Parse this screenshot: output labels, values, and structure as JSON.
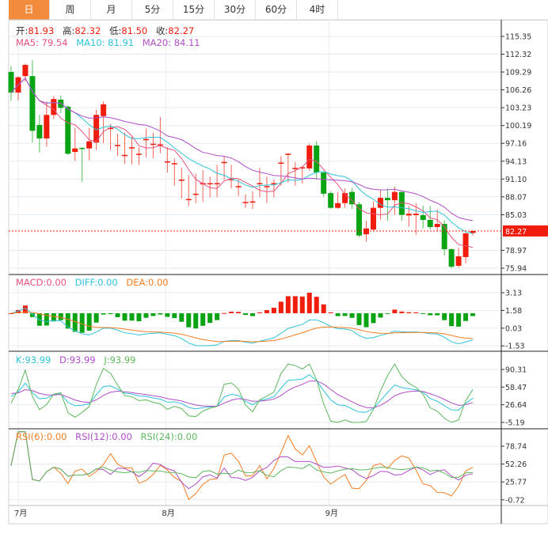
{
  "tabs": [
    "日",
    "周",
    "月",
    "5分",
    "15分",
    "30分",
    "60分",
    "4时"
  ],
  "active_tab": 0,
  "info": {
    "open_label": "开:",
    "open": "81.93",
    "high_label": "高:",
    "high": "82.32",
    "low_label": "低:",
    "low": "81.50",
    "close_label": "收:",
    "close": "82.27"
  },
  "ma_legend": {
    "ma5": "MA5: 79.54",
    "ma10": "MA10: 81.91",
    "ma20": "MA20: 84.11"
  },
  "macd_legend": {
    "macd": "MACD:0.00",
    "diff": "DIFF:0.00",
    "dea": "DEA:0.00"
  },
  "kdj_legend": {
    "k": "K:93.99",
    "d": "D:93.99",
    "j": "J:93.99"
  },
  "rsi_legend": {
    "rsi6": "RSI(6):0.00",
    "rsi12": "RSI(12):0.00",
    "rsi24": "RSI(24):0.00"
  },
  "colors": {
    "up": "#f01c0c",
    "down": "#0aa313",
    "ma5": "#e8507e",
    "ma10": "#2fc3d9",
    "ma20": "#b14dc8",
    "dea": "#f47c20",
    "accent": "#f28c3c"
  },
  "chart_data": {
    "type": "candlestick",
    "price_ticks": [
      "115.35",
      "112.32",
      "109.29",
      "106.26",
      "103.23",
      "100.19",
      "97.16",
      "94.13",
      "91.10",
      "88.07",
      "85.03",
      "78.97",
      "75.94"
    ],
    "price_range": [
      75.94,
      115.35
    ],
    "last_price": "82.27",
    "macd_ticks": [
      "3.13",
      "1.58",
      "0.03",
      "-1.53"
    ],
    "kdj_ticks": [
      "90.31",
      "58.47",
      "26.64",
      "-5.19"
    ],
    "rsi_ticks": [
      "78.74",
      "52.26",
      "25.77",
      "-0.72"
    ],
    "x_labels": [
      {
        "label": "7月",
        "index": 1
      },
      {
        "label": "8月",
        "index": 22
      },
      {
        "label": "9月",
        "index": 45
      }
    ],
    "ohlc": [
      [
        109.3,
        110.3,
        104.4,
        105.8
      ],
      [
        105.8,
        108.6,
        104.5,
        108.4
      ],
      [
        108.6,
        110.7,
        107.7,
        110.5
      ],
      [
        108.6,
        111.3,
        97.3,
        99.3
      ],
      [
        100.3,
        102.0,
        95.6,
        98.0
      ],
      [
        98.0,
        104.3,
        96.6,
        102.0
      ],
      [
        102.0,
        105.2,
        101.3,
        104.7
      ],
      [
        104.6,
        105.3,
        102.3,
        103.2
      ],
      [
        103.4,
        103.6,
        95.2,
        95.4
      ],
      [
        95.7,
        99.8,
        94.2,
        96.3
      ],
      [
        96.4,
        96.5,
        90.6,
        96.3
      ],
      [
        96.3,
        99.8,
        94.3,
        97.5
      ],
      [
        97.3,
        102.9,
        96.0,
        102.0
      ],
      [
        101.8,
        104.3,
        97.2,
        103.8
      ],
      [
        99.7,
        100.5,
        96.0,
        99.8
      ],
      [
        96.9,
        98.8,
        95.0,
        96.9
      ],
      [
        95.0,
        99.0,
        93.7,
        95.2
      ],
      [
        96.4,
        98.3,
        93.6,
        96.5
      ],
      [
        95.3,
        96.5,
        93.5,
        95.4
      ],
      [
        97.8,
        99.7,
        94.8,
        97.9
      ],
      [
        97.0,
        99.0,
        94.6,
        97.1
      ],
      [
        96.9,
        101.6,
        95.5,
        97.0
      ],
      [
        94.0,
        96.5,
        92.2,
        94.1
      ],
      [
        93.7,
        94.6,
        90.0,
        93.8
      ],
      [
        90.9,
        93.0,
        87.8,
        91.0
      ],
      [
        87.6,
        91.8,
        86.5,
        87.7
      ],
      [
        88.5,
        92.0,
        87.0,
        88.6
      ],
      [
        90.3,
        92.6,
        87.2,
        90.4
      ],
      [
        90.3,
        91.5,
        88.0,
        90.4
      ],
      [
        90.3,
        93.5,
        88.0,
        90.4
      ],
      [
        93.9,
        95.0,
        91.0,
        94.0
      ],
      [
        91.0,
        93.5,
        89.5,
        91.1
      ],
      [
        89.8,
        91.0,
        88.2,
        89.9
      ],
      [
        87.1,
        88.5,
        86.2,
        87.2
      ],
      [
        87.2,
        89.0,
        86.0,
        87.3
      ],
      [
        90.3,
        93.0,
        88.0,
        90.4
      ],
      [
        89.8,
        91.5,
        87.0,
        89.9
      ],
      [
        90.3,
        91.0,
        88.0,
        90.4
      ],
      [
        93.8,
        95.0,
        90.0,
        93.9
      ],
      [
        95.3,
        95.5,
        90.5,
        95.4
      ],
      [
        92.9,
        94.0,
        90.0,
        93.0
      ],
      [
        92.9,
        93.3,
        90.3,
        93.1
      ],
      [
        92.9,
        97.1,
        92.5,
        96.8
      ],
      [
        96.8,
        97.5,
        91.0,
        92.2
      ],
      [
        92.2,
        92.3,
        88.1,
        88.6
      ],
      [
        88.7,
        89.0,
        86.0,
        86.2
      ],
      [
        86.2,
        88.9,
        86.0,
        87.0
      ],
      [
        87.0,
        89.5,
        86.2,
        88.7
      ],
      [
        88.9,
        89.6,
        86.0,
        86.8
      ],
      [
        86.8,
        87.2,
        81.2,
        81.5
      ],
      [
        81.7,
        84.0,
        80.5,
        82.7
      ],
      [
        82.5,
        87.3,
        82.3,
        86.2
      ],
      [
        86.2,
        89.2,
        84.2,
        87.9
      ],
      [
        87.9,
        89.5,
        84.0,
        87.5
      ],
      [
        87.5,
        89.8,
        85.0,
        88.9
      ],
      [
        88.9,
        89.0,
        84.0,
        85.0
      ],
      [
        84.9,
        86.5,
        83.0,
        85.2
      ],
      [
        84.95,
        87.0,
        81.6,
        85.2
      ],
      [
        84.95,
        86.6,
        82.7,
        84.15
      ],
      [
        84.15,
        86.5,
        82.5,
        82.94
      ],
      [
        82.94,
        85.9,
        82.3,
        83.47
      ],
      [
        83.47,
        84.1,
        78.1,
        79.17
      ],
      [
        79.17,
        79.3,
        75.9,
        76.2
      ],
      [
        76.35,
        79.4,
        76.0,
        77.96
      ],
      [
        77.83,
        82.0,
        76.8,
        81.86
      ],
      [
        81.93,
        82.32,
        81.5,
        82.27
      ]
    ]
  }
}
